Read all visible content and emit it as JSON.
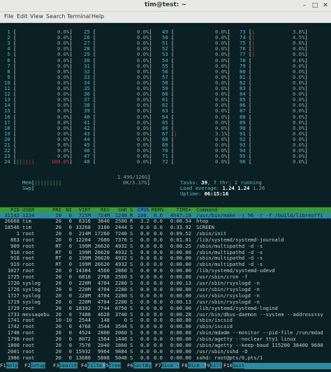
{
  "window": {
    "title": "tim@test: ~",
    "menu": [
      "File",
      "Edit",
      "View",
      "Search",
      "Terminal",
      "Help"
    ]
  },
  "cpus": {
    "col1": [
      {
        "n": "1",
        "p": "0.0%"
      },
      {
        "n": "2",
        "p": "0.0%"
      },
      {
        "n": "3",
        "p": "0.0%"
      },
      {
        "n": "4",
        "p": "0.0%"
      },
      {
        "n": "5",
        "p": "0.0%"
      },
      {
        "n": "6",
        "p": "0.0%"
      },
      {
        "n": "7",
        "p": "0.0%"
      },
      {
        "n": "8",
        "p": "0.0%"
      },
      {
        "n": "9",
        "p": "0.0%"
      },
      {
        "n": "10",
        "p": "0.0%"
      },
      {
        "n": "11",
        "p": "0.0%"
      },
      {
        "n": "12",
        "p": "0.0%"
      },
      {
        "n": "13",
        "p": "0.0%"
      },
      {
        "n": "14",
        "p": "0.0%"
      },
      {
        "n": "15",
        "p": "0.0%"
      },
      {
        "n": "16",
        "p": "0.0%"
      },
      {
        "n": "17",
        "p": "0.0%"
      },
      {
        "n": "18",
        "p": "0.0%"
      },
      {
        "n": "19",
        "p": "0.0%"
      },
      {
        "n": "20",
        "p": "0.0%"
      },
      {
        "n": "21",
        "p": "0.0%"
      },
      {
        "n": "22",
        "p": "0.0%"
      },
      {
        "n": "23",
        "p": "0.0%"
      },
      {
        "n": "24",
        "p": "100.0%"
      }
    ],
    "col2": [
      {
        "n": "25",
        "p": "0.0%"
      },
      {
        "n": "26",
        "p": "0.0%"
      },
      {
        "n": "27",
        "p": "0.0%"
      },
      {
        "n": "28",
        "p": "0.0%"
      },
      {
        "n": "29",
        "p": "0.0%"
      },
      {
        "n": "30",
        "p": "0.0%"
      },
      {
        "n": "31",
        "p": "0.0%"
      },
      {
        "n": "32",
        "p": "0.0%"
      },
      {
        "n": "33",
        "p": "0.0%"
      },
      {
        "n": "34",
        "p": "0.0%"
      },
      {
        "n": "35",
        "p": "0.0%"
      },
      {
        "n": "36",
        "p": "0.0%"
      },
      {
        "n": "37",
        "p": "0.0%"
      },
      {
        "n": "38",
        "p": "0.0%"
      },
      {
        "n": "39",
        "p": "0.0%"
      },
      {
        "n": "40",
        "p": "0.0%"
      },
      {
        "n": "41",
        "p": "0.0%"
      },
      {
        "n": "42",
        "p": "0.0%"
      },
      {
        "n": "43",
        "p": "0.0%"
      },
      {
        "n": "44",
        "p": "0.0%"
      },
      {
        "n": "45",
        "p": "0.0%"
      },
      {
        "n": "46",
        "p": "0.0%"
      },
      {
        "n": "47",
        "p": "0.0%"
      },
      {
        "n": "48",
        "p": "0.0%"
      }
    ],
    "col3": [
      {
        "n": "49",
        "p": "0.0%"
      },
      {
        "n": "50",
        "p": "0.0%"
      },
      {
        "n": "51",
        "p": "0.0%"
      },
      {
        "n": "52",
        "p": "0.0%"
      },
      {
        "n": "53",
        "p": "0.0%"
      },
      {
        "n": "54",
        "p": "0.0%"
      },
      {
        "n": "55",
        "p": "0.0%"
      },
      {
        "n": "56",
        "p": "0.0%"
      },
      {
        "n": "57",
        "p": "0.0%"
      },
      {
        "n": "58",
        "p": "0.0%"
      },
      {
        "n": "59",
        "p": "0.0%"
      },
      {
        "n": "60",
        "p": "0.0%"
      },
      {
        "n": "61",
        "p": "0.0%"
      },
      {
        "n": "62",
        "p": "0.0%"
      },
      {
        "n": "63",
        "p": "0.0%"
      },
      {
        "n": "64",
        "p": "0.0%"
      },
      {
        "n": "65",
        "p": "0.0%"
      },
      {
        "n": "66",
        "p": "0.0%"
      },
      {
        "n": "67",
        "p": "3.1%"
      },
      {
        "n": "68",
        "p": "0.0%"
      },
      {
        "n": "69",
        "p": "0.0%"
      },
      {
        "n": "70",
        "p": "0.0%"
      },
      {
        "n": "71",
        "p": "0.0%"
      },
      {
        "n": "72",
        "p": "0.0%"
      }
    ],
    "col4": [
      {
        "n": "73",
        "p": "3.8%"
      },
      {
        "n": "74",
        "p": "4.5%"
      },
      {
        "n": "75",
        "p": "0.6%"
      },
      {
        "n": "76",
        "p": "0.6%"
      },
      {
        "n": "77",
        "p": "0.6%"
      },
      {
        "n": "78",
        "p": "0.0%"
      },
      {
        "n": "79",
        "p": "0.0%"
      },
      {
        "n": "80",
        "p": "0.0%"
      },
      {
        "n": "81",
        "p": "0.0%"
      },
      {
        "n": "82",
        "p": "0.0%"
      },
      {
        "n": "83",
        "p": "0.0%"
      },
      {
        "n": "84",
        "p": "0.0%"
      },
      {
        "n": "85",
        "p": "0.0%"
      },
      {
        "n": "86",
        "p": "0.0%"
      },
      {
        "n": "87",
        "p": "0.0%"
      },
      {
        "n": "88",
        "p": "0.0%"
      },
      {
        "n": "89",
        "p": "0.0%"
      },
      {
        "n": "90",
        "p": "0.0%"
      },
      {
        "n": "91",
        "p": "0.0%"
      },
      {
        "n": "92",
        "p": "0.0%"
      },
      {
        "n": "93",
        "p": "0.0%"
      },
      {
        "n": "94",
        "p": "0.0%"
      },
      {
        "n": "95",
        "p": "0.0%"
      },
      {
        "n": "96",
        "p": "0.0%"
      }
    ]
  },
  "meters": {
    "mem_label": "Mem",
    "mem_value": "1.49G/126G",
    "swp_label": "Swp",
    "swp_value": "0K/3.17G",
    "tasks_label": "Tasks:",
    "tasks_count": "39",
    "thr_count": "7",
    "thr_label": "thr;",
    "running_count": "2",
    "running_label": "running",
    "load_label": "Load average:",
    "load1": "1.24",
    "load5": "1.24",
    "load15": "1.26",
    "uptime_label": "Uptime:",
    "uptime_value": "06:15:16"
  },
  "table": {
    "headers": [
      "PID",
      "USER",
      "PRI",
      "NI",
      "VIRT",
      "RES",
      "SHR",
      "S",
      "CPU%",
      "MEM%",
      "TIME+",
      "Command"
    ],
    "selected": {
      "pid": "31142",
      "user": "1234",
      "pri": "20",
      "ni": "0",
      "virt": "725M",
      "res": "724M",
      "shr": "1240",
      "s": "R",
      "cpu": "100.",
      "mem": "0.6",
      "time": "4h47:19",
      "cmd": "/usr/bin/make -j 96 -r -f /build/libreoffi"
    },
    "rows": [
      {
        "pid": "26668",
        "user": "tim",
        "pri": "20",
        "ni": "0",
        "virt": "6316",
        "res": "3840",
        "shr": "2500",
        "s": "R",
        "cpu": "3.2",
        "mem": "0.0",
        "time": "0:00.54",
        "cmd": "htop",
        "green": false
      },
      {
        "pid": "18546",
        "user": "tim",
        "pri": "20",
        "ni": "0",
        "virt": "33268",
        "res": "3100",
        "shr": "2444",
        "s": "S",
        "cpu": "0.0",
        "mem": "0.0",
        "time": "0:33.92",
        "cmd": "SCREEN",
        "green": false
      },
      {
        "pid": "1",
        "user": "root",
        "pri": "20",
        "ni": "0",
        "virt": "214M",
        "res": "17260",
        "shr": "7240",
        "s": "S",
        "cpu": "0.0",
        "mem": "0.0",
        "time": "0:09.52",
        "cmd": "/sbin/init",
        "green": false
      },
      {
        "pid": "863",
        "user": "root",
        "pri": "20",
        "ni": "0",
        "virt": "12204",
        "res": "7680",
        "shr": "7376",
        "s": "S",
        "cpu": "0.0",
        "mem": "0.0",
        "time": "0:01.01",
        "cmd": "/lib/systemd/systemd-journald",
        "green": false
      },
      {
        "pid": "909",
        "user": "root",
        "pri": "RT",
        "ni": "0",
        "virt": "199M",
        "res": "26620",
        "shr": "4932",
        "s": "S",
        "cpu": "0.0",
        "mem": "0.0",
        "time": "0:00.25",
        "cmd": "/sbin/multipathd -d -s",
        "green": false
      },
      {
        "pid": "910",
        "user": "root",
        "pri": "RT",
        "ni": "0",
        "virt": "199M",
        "res": "26620",
        "shr": "4932",
        "s": "S",
        "cpu": "0.0",
        "mem": "0.0",
        "time": "0:00.00",
        "cmd": "/sbin/multipathd -d -s",
        "green": true
      },
      {
        "pid": "918",
        "user": "root",
        "pri": "RT",
        "ni": "0",
        "virt": "199M",
        "res": "26620",
        "shr": "4932",
        "s": "S",
        "cpu": "0.0",
        "mem": "0.0",
        "time": "0:00.00",
        "cmd": "/sbin/multipathd -d -s",
        "green": true
      },
      {
        "pid": "919",
        "user": "root",
        "pri": "RT",
        "ni": "0",
        "virt": "199M",
        "res": "26620",
        "shr": "4932",
        "s": "S",
        "cpu": "0.0",
        "mem": "0.0",
        "time": "0:00.00",
        "cmd": "/sbin/multipathd -d -s",
        "green": true
      },
      {
        "pid": "1027",
        "user": "root",
        "pri": "20",
        "ni": "0",
        "virt": "14384",
        "res": "4560",
        "shr": "2860",
        "s": "S",
        "cpu": "0.0",
        "mem": "0.0",
        "time": "0:00.00",
        "cmd": "/lib/systemd/systemd-udevd",
        "green": false
      },
      {
        "pid": "1725",
        "user": "root",
        "pri": "20",
        "ni": "0",
        "virt": "6816",
        "res": "2768",
        "shr": "2500",
        "s": "S",
        "cpu": "0.0",
        "mem": "0.0",
        "time": "0:00.00",
        "cmd": "/usr/sbin/cron -f",
        "green": false
      },
      {
        "pid": "1720",
        "user": "syslog",
        "pri": "20",
        "ni": "0",
        "virt": "220M",
        "res": "4704",
        "shr": "2280",
        "s": "S",
        "cpu": "0.0",
        "mem": "0.0",
        "time": "0:00.13",
        "cmd": "/usr/sbin/rsyslogd -n",
        "green": true
      },
      {
        "pid": "1726",
        "user": "syslog",
        "pri": "20",
        "ni": "0",
        "virt": "220M",
        "res": "4704",
        "shr": "2280",
        "s": "S",
        "cpu": "0.0",
        "mem": "0.0",
        "time": "0:00.00",
        "cmd": "/usr/sbin/rsyslogd -n",
        "green": true
      },
      {
        "pid": "1727",
        "user": "syslog",
        "pri": "20",
        "ni": "0",
        "virt": "220M",
        "res": "4704",
        "shr": "2280",
        "s": "S",
        "cpu": "0.0",
        "mem": "0.0",
        "time": "0:00.00",
        "cmd": "/usr/sbin/rsyslogd -n",
        "green": true
      },
      {
        "pid": "1719",
        "user": "syslog",
        "pri": "20",
        "ni": "0",
        "virt": "220M",
        "res": "4704",
        "shr": "2280",
        "s": "S",
        "cpu": "0.0",
        "mem": "0.0",
        "time": "0:00.13",
        "cmd": "/usr/sbin/rsyslogd -n",
        "green": false
      },
      {
        "pid": "1729",
        "user": "root",
        "pri": "20",
        "ni": "0",
        "virt": "18392",
        "res": "7744",
        "shr": "6756",
        "s": "S",
        "cpu": "0.0",
        "mem": "0.0",
        "time": "0:00.00",
        "cmd": "/lib/systemd/systemd-logind",
        "green": false
      },
      {
        "pid": "1733",
        "user": "messagebu",
        "pri": "20",
        "ni": "0",
        "virt": "7488",
        "res": "4628",
        "shr": "3740",
        "s": "S",
        "cpu": "0.0",
        "mem": "0.0",
        "time": "0:00.28",
        "cmd": "/usr/bin/dbus-daemon --system --address=sy",
        "green": false
      },
      {
        "pid": "1741",
        "user": "root",
        "pri": "10",
        "ni": "-10",
        "virt": "2544",
        "res": "148",
        "shr": "0",
        "s": "S",
        "cpu": "0.0",
        "mem": "0.0",
        "time": "0:00.00",
        "cmd": "/sbin/iscsid",
        "green": false
      },
      {
        "pid": "1742",
        "user": "root",
        "pri": "20",
        "ni": "0",
        "virt": "4768",
        "res": "3544",
        "shr": "3544",
        "s": "S",
        "cpu": "0.0",
        "mem": "0.0",
        "time": "0:00.00",
        "cmd": "/sbin/iscsid",
        "green": false
      },
      {
        "pid": "1748",
        "user": "root",
        "pri": "20",
        "ni": "0",
        "virt": "4524",
        "res": "2800",
        "shr": "2060",
        "s": "S",
        "cpu": "0.0",
        "mem": "0.0",
        "time": "0:00.00",
        "cmd": "/sbin/mdadm --monitor --pid-file /run/mdad",
        "green": false
      },
      {
        "pid": "1798",
        "user": "root",
        "pri": "20",
        "ni": "0",
        "virt": "8072",
        "res": "1564",
        "shr": "1440",
        "s": "S",
        "cpu": "0.0",
        "mem": "0.0",
        "time": "0:00.00",
        "cmd": "/sbin/agetty --noclear tty1 linux",
        "green": false
      },
      {
        "pid": "1800",
        "user": "root",
        "pri": "20",
        "ni": "0",
        "virt": "7576",
        "res": "2040",
        "shr": "1860",
        "s": "S",
        "cpu": "0.0",
        "mem": "0.0",
        "time": "0:00.00",
        "cmd": "/sbin/agetty --keep-baud 115200 38400 9600",
        "green": false
      },
      {
        "pid": "2001",
        "user": "root",
        "pri": "20",
        "ni": "0",
        "virt": "15932",
        "res": "9964",
        "shr": "9884",
        "s": "S",
        "cpu": "0.0",
        "mem": "0.0",
        "time": "0:00.00",
        "cmd": "/usr/sbin/sshd -D",
        "green": false
      },
      {
        "pid": "1986",
        "user": "root",
        "pri": "20",
        "ni": "0",
        "virt": "13680",
        "res": "5808",
        "shr": "5048",
        "s": "S",
        "cpu": "0.0",
        "mem": "0.0",
        "time": "0:00.00",
        "cmd": "sshd: root@pts/0,pts/1",
        "green": false
      }
    ]
  },
  "fkeys": [
    {
      "k": "F1",
      "t": "Help"
    },
    {
      "k": "F2",
      "t": "Setup"
    },
    {
      "k": "F3",
      "t": "Search"
    },
    {
      "k": "F4",
      "t": "Filter"
    },
    {
      "k": "F5",
      "t": "Tree"
    },
    {
      "k": "F6",
      "t": "SortBy"
    },
    {
      "k": "F7",
      "t": "Nice -"
    },
    {
      "k": "F8",
      "t": "Nice +"
    },
    {
      "k": "F9",
      "t": "Kill"
    },
    {
      "k": "F10",
      "t": "Quit"
    }
  ]
}
